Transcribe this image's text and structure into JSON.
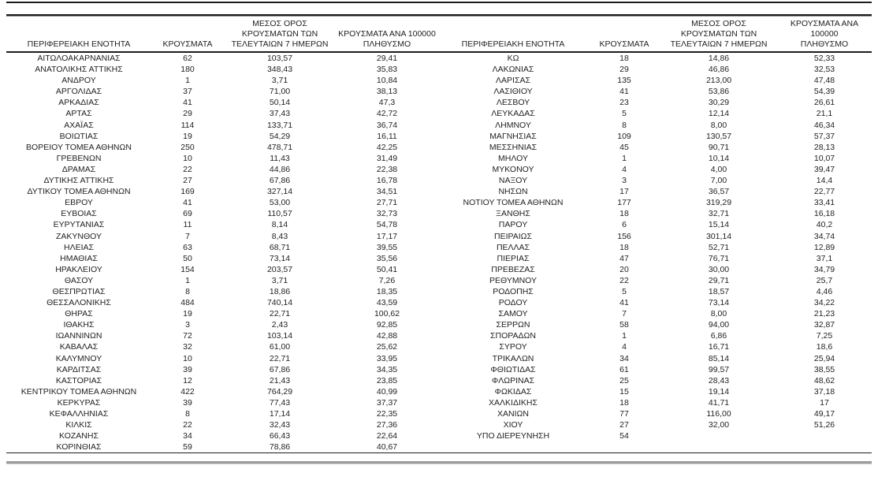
{
  "table": {
    "columns": [
      "ΠΕΡΙΦΕΡΕΙΑΚΗ ΕΝΟΤΗΤΑ",
      "ΚΡΟΥΣΜΑΤΑ",
      "ΜΕΣΟΣ ΟΡΟΣ\nΚΡΟΥΣΜΑΤΩΝ ΤΩΝ\nΤΕΛΕΥΤΑΙΩΝ 7 ΗΜΕΡΩΝ",
      "ΚΡΟΥΣΜΑΤΑ ΑΝΑ 100000\nΠΛΗΘΥΣΜΟ"
    ],
    "left_rows": [
      [
        "ΑΙΤΩΛΟΑΚΑΡΝΑΝΙΑΣ",
        "62",
        "103,57",
        "29,41"
      ],
      [
        "ΑΝΑΤΟΛΙΚΗΣ ΑΤΤΙΚΗΣ",
        "180",
        "348,43",
        "35,83"
      ],
      [
        "ΑΝΔΡΟΥ",
        "1",
        "3,71",
        "10,84"
      ],
      [
        "ΑΡΓΟΛΙΔΑΣ",
        "37",
        "71,00",
        "38,13"
      ],
      [
        "ΑΡΚΑΔΙΑΣ",
        "41",
        "50,14",
        "47,3"
      ],
      [
        "ΑΡΤΑΣ",
        "29",
        "37,43",
        "42,72"
      ],
      [
        "ΑΧΑΪΑΣ",
        "114",
        "133,71",
        "36,74"
      ],
      [
        "ΒΟΙΩΤΙΑΣ",
        "19",
        "54,29",
        "16,11"
      ],
      [
        "ΒΟΡΕΙΟΥ ΤΟΜΕΑ ΑΘΗΝΩΝ",
        "250",
        "478,71",
        "42,25"
      ],
      [
        "ΓΡΕΒΕΝΩΝ",
        "10",
        "11,43",
        "31,49"
      ],
      [
        "ΔΡΑΜΑΣ",
        "22",
        "44,86",
        "22,38"
      ],
      [
        "ΔΥΤΙΚΗΣ ΑΤΤΙΚΗΣ",
        "27",
        "67,86",
        "16,78"
      ],
      [
        "ΔΥΤΙΚΟΥ ΤΟΜΕΑ ΑΘΗΝΩΝ",
        "169",
        "327,14",
        "34,51"
      ],
      [
        "ΕΒΡΟΥ",
        "41",
        "53,00",
        "27,71"
      ],
      [
        "ΕΥΒΟΙΑΣ",
        "69",
        "110,57",
        "32,73"
      ],
      [
        "ΕΥΡΥΤΑΝΙΑΣ",
        "11",
        "8,14",
        "54,78"
      ],
      [
        "ΖΑΚΥΝΘΟΥ",
        "7",
        "8,43",
        "17,17"
      ],
      [
        "ΗΛΕΙΑΣ",
        "63",
        "68,71",
        "39,55"
      ],
      [
        "ΗΜΑΘΙΑΣ",
        "50",
        "73,14",
        "35,56"
      ],
      [
        "ΗΡΑΚΛΕΙΟΥ",
        "154",
        "203,57",
        "50,41"
      ],
      [
        "ΘΑΣΟΥ",
        "1",
        "3,71",
        "7,26"
      ],
      [
        "ΘΕΣΠΡΩΤΙΑΣ",
        "8",
        "18,86",
        "18,35"
      ],
      [
        "ΘΕΣΣΑΛΟΝΙΚΗΣ",
        "484",
        "740,14",
        "43,59"
      ],
      [
        "ΘΗΡΑΣ",
        "19",
        "22,71",
        "100,62"
      ],
      [
        "ΙΘΑΚΗΣ",
        "3",
        "2,43",
        "92,85"
      ],
      [
        "ΙΩΑΝΝΙΝΩΝ",
        "72",
        "103,14",
        "42,88"
      ],
      [
        "ΚΑΒΑΛΑΣ",
        "32",
        "61,00",
        "25,62"
      ],
      [
        "ΚΑΛΥΜΝΟΥ",
        "10",
        "22,71",
        "33,95"
      ],
      [
        "ΚΑΡΔΙΤΣΑΣ",
        "39",
        "67,86",
        "34,35"
      ],
      [
        "ΚΑΣΤΟΡΙΑΣ",
        "12",
        "21,43",
        "23,85"
      ],
      [
        "ΚΕΝΤΡΙΚΟΥ ΤΟΜΕΑ ΑΘΗΝΩΝ",
        "422",
        "764,29",
        "40,99"
      ],
      [
        "ΚΕΡΚΥΡΑΣ",
        "39",
        "77,43",
        "37,37"
      ],
      [
        "ΚΕΦΑΛΛΗΝΙΑΣ",
        "8",
        "17,14",
        "22,35"
      ],
      [
        "ΚΙΛΚΙΣ",
        "22",
        "32,43",
        "27,36"
      ],
      [
        "ΚΟΖΑΝΗΣ",
        "34",
        "66,43",
        "22,64"
      ],
      [
        "ΚΟΡΙΝΘΙΑΣ",
        "59",
        "78,86",
        "40,67"
      ]
    ],
    "right_rows": [
      [
        "ΚΩ",
        "18",
        "14,86",
        "52,33"
      ],
      [
        "ΛΑΚΩΝΙΑΣ",
        "29",
        "46,86",
        "32,53"
      ],
      [
        "ΛΑΡΙΣΑΣ",
        "135",
        "213,00",
        "47,48"
      ],
      [
        "ΛΑΣΙΘΙΟΥ",
        "41",
        "53,86",
        "54,39"
      ],
      [
        "ΛΕΣΒΟΥ",
        "23",
        "30,29",
        "26,61"
      ],
      [
        "ΛΕΥΚΑΔΑΣ",
        "5",
        "12,14",
        "21,1"
      ],
      [
        "ΛΗΜΝΟΥ",
        "8",
        "8,00",
        "46,34"
      ],
      [
        "ΜΑΓΝΗΣΙΑΣ",
        "109",
        "130,57",
        "57,37"
      ],
      [
        "ΜΕΣΣΗΝΙΑΣ",
        "45",
        "90,71",
        "28,13"
      ],
      [
        "ΜΗΛΟΥ",
        "1",
        "10,14",
        "10,07"
      ],
      [
        "ΜΥΚΟΝΟΥ",
        "4",
        "4,00",
        "39,47"
      ],
      [
        "ΝΑΞΟΥ",
        "3",
        "7,00",
        "14,4"
      ],
      [
        "ΝΗΣΩΝ",
        "17",
        "36,57",
        "22,77"
      ],
      [
        "ΝΟΤΙΟΥ ΤΟΜΕΑ ΑΘΗΝΩΝ",
        "177",
        "319,29",
        "33,41"
      ],
      [
        "ΞΑΝΘΗΣ",
        "18",
        "32,71",
        "16,18"
      ],
      [
        "ΠΑΡΟΥ",
        "6",
        "15,14",
        "40,2"
      ],
      [
        "ΠΕΙΡΑΙΩΣ",
        "156",
        "301,14",
        "34,74"
      ],
      [
        "ΠΕΛΛΑΣ",
        "18",
        "52,71",
        "12,89"
      ],
      [
        "ΠΙΕΡΙΑΣ",
        "47",
        "76,71",
        "37,1"
      ],
      [
        "ΠΡΕΒΕΖΑΣ",
        "20",
        "30,00",
        "34,79"
      ],
      [
        "ΡΕΘΥΜΝΟΥ",
        "22",
        "29,71",
        "25,7"
      ],
      [
        "ΡΟΔΟΠΗΣ",
        "5",
        "18,57",
        "4,46"
      ],
      [
        "ΡΟΔΟΥ",
        "41",
        "73,14",
        "34,22"
      ],
      [
        "ΣΑΜΟΥ",
        "7",
        "8,00",
        "21,23"
      ],
      [
        "ΣΕΡΡΩΝ",
        "58",
        "94,00",
        "32,87"
      ],
      [
        "ΣΠΟΡΑΔΩΝ",
        "1",
        "6,86",
        "7,25"
      ],
      [
        "ΣΥΡΟΥ",
        "4",
        "16,71",
        "18,6"
      ],
      [
        "ΤΡΙΚΑΛΩΝ",
        "34",
        "85,14",
        "25,94"
      ],
      [
        "ΦΘΙΩΤΙΔΑΣ",
        "61",
        "99,57",
        "38,55"
      ],
      [
        "ΦΛΩΡΙΝΑΣ",
        "25",
        "28,43",
        "48,62"
      ],
      [
        "ΦΩΚΙΔΑΣ",
        "15",
        "19,14",
        "37,18"
      ],
      [
        "ΧΑΛΚΙΔΙΚΗΣ",
        "18",
        "41,71",
        "17"
      ],
      [
        "ΧΑΝΙΩΝ",
        "77",
        "116,00",
        "49,17"
      ],
      [
        "ΧΙΟΥ",
        "27",
        "32,00",
        "51,26"
      ],
      [
        "ΥΠΟ ΔΙΕΡΕΥΝΗΣΗ",
        "54",
        "",
        ""
      ]
    ]
  },
  "colors": {
    "rule_dark": "#1c1c1c",
    "rule_gray": "#9c9c9c",
    "text": "#1f1f1f"
  }
}
